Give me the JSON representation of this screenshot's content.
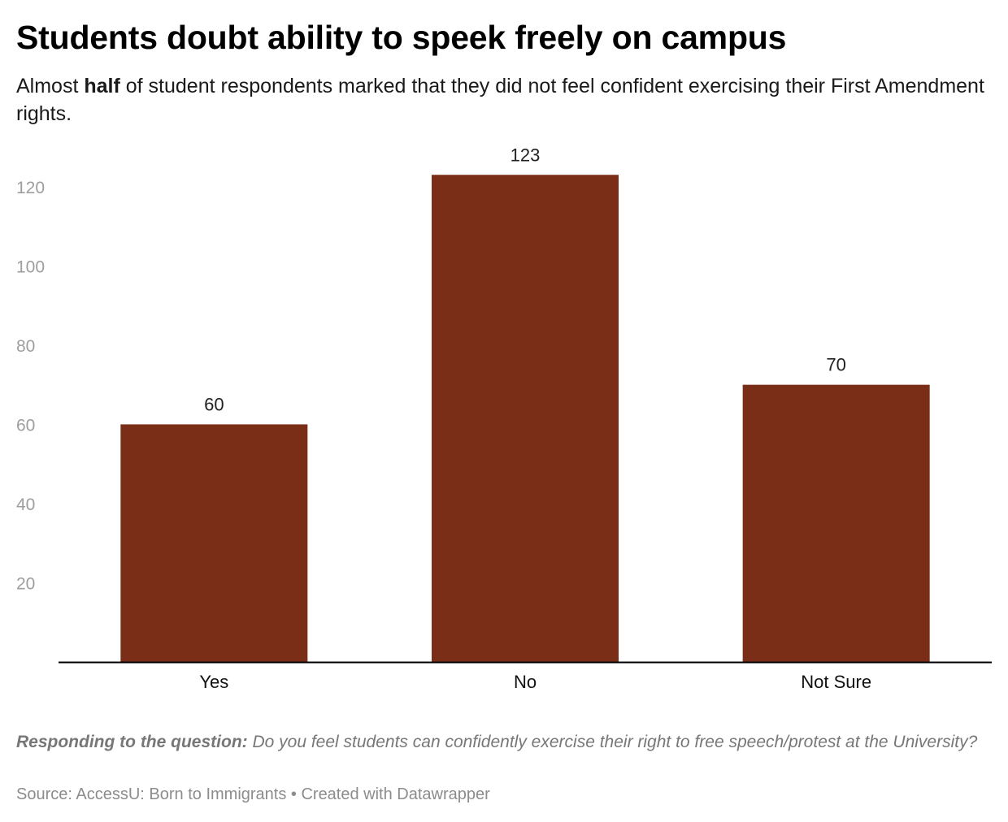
{
  "header": {
    "title": "Students doubt ability to speek freely on campus",
    "subtitle_before": "Almost ",
    "subtitle_bold": "half",
    "subtitle_after": " of student respondents marked that they did not feel confident exercising their First Amendment rights."
  },
  "chart_data": {
    "type": "bar",
    "categories": [
      "Yes",
      "No",
      "Not Sure"
    ],
    "values": [
      60,
      123,
      70
    ],
    "title": "",
    "xlabel": "",
    "ylabel": "",
    "ylim": [
      0,
      130
    ],
    "yticks": [
      20,
      40,
      60,
      80,
      100,
      120
    ],
    "grid": false,
    "data_labels": true,
    "bar_color": "#7b2e17",
    "axis_color": "#000000",
    "tick_label_color": "#9e9e9e"
  },
  "footer": {
    "notes_label": "Responding to the question:",
    "notes_text": " Do you feel students can confidently exercise their right to free speech/protest at the University?",
    "source_text": "Source: AccessU: Born to Immigrants • Created with Datawrapper"
  }
}
